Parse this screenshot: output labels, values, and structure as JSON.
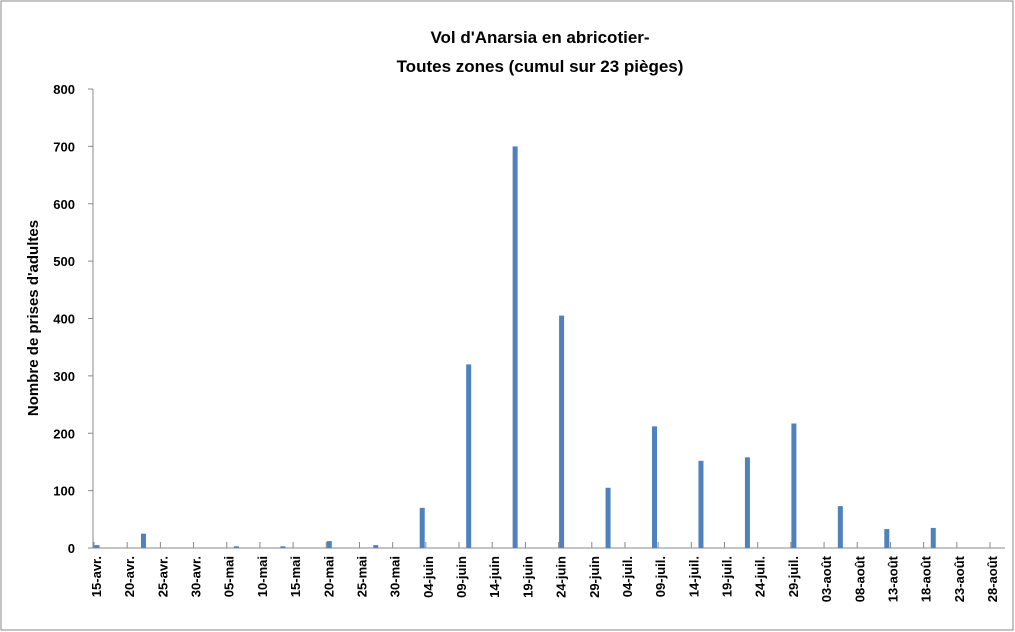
{
  "chart_data": {
    "type": "bar",
    "title": [
      "Vol d'Anarsia en abricotier-",
      "Toutes zones (cumul sur 23 pièges)"
    ],
    "y_label": "Nombre de prises d'adultes",
    "color": "#4f81bd",
    "categories": [
      "15-avr.",
      null,
      null,
      null,
      null,
      "20-avr.",
      null,
      null,
      null,
      null,
      "25-avr.",
      null,
      null,
      null,
      null,
      "30-avr.",
      null,
      null,
      null,
      null,
      "05-mai",
      null,
      null,
      null,
      null,
      "10-mai",
      null,
      null,
      null,
      null,
      "15-mai",
      null,
      null,
      null,
      null,
      "20-mai",
      null,
      null,
      null,
      null,
      "25-mai",
      null,
      null,
      null,
      null,
      "30-mai",
      null,
      null,
      null,
      null,
      "04-juin",
      null,
      null,
      null,
      null,
      "09-juin",
      null,
      null,
      null,
      null,
      "14-juin",
      null,
      null,
      null,
      null,
      "19-juin",
      null,
      null,
      null,
      null,
      "24-juin",
      null,
      null,
      null,
      null,
      "29-juin",
      null,
      null,
      null,
      null,
      "04-juil.",
      null,
      null,
      null,
      null,
      "09-juil.",
      null,
      null,
      null,
      null,
      "14-juil.",
      null,
      null,
      null,
      null,
      "19-juil.",
      null,
      null,
      null,
      null,
      "24-juil.",
      null,
      null,
      null,
      null,
      "29-juil.",
      null,
      null,
      null,
      null,
      "03-août",
      null,
      null,
      null,
      null,
      "08-août",
      null,
      null,
      null,
      null,
      "13-août",
      null,
      null,
      null,
      null,
      "18-août",
      null,
      null,
      null,
      null,
      "23-août",
      null,
      null,
      null,
      null,
      "28-août"
    ],
    "values": [
      5,
      null,
      null,
      null,
      null,
      null,
      null,
      25,
      null,
      null,
      null,
      null,
      null,
      null,
      null,
      null,
      null,
      null,
      null,
      null,
      null,
      3,
      null,
      null,
      null,
      null,
      null,
      null,
      3,
      null,
      null,
      null,
      null,
      null,
      null,
      12,
      null,
      null,
      null,
      null,
      null,
      null,
      5,
      null,
      null,
      null,
      null,
      null,
      null,
      70,
      null,
      null,
      null,
      null,
      null,
      null,
      320,
      null,
      null,
      null,
      null,
      null,
      null,
      700,
      null,
      null,
      null,
      null,
      null,
      null,
      405,
      null,
      null,
      null,
      null,
      null,
      null,
      105,
      null,
      null,
      null,
      null,
      null,
      null,
      212,
      null,
      null,
      null,
      null,
      null,
      null,
      152,
      null,
      null,
      null,
      null,
      null,
      null,
      158,
      null,
      null,
      null,
      null,
      null,
      null,
      217,
      null,
      null,
      null,
      null,
      null,
      null,
      73,
      null,
      null,
      null,
      null,
      null,
      null,
      33,
      null,
      null,
      null,
      null,
      null,
      null,
      35,
      null,
      null,
      null,
      null,
      null,
      null,
      null,
      null,
      null
    ],
    "ylim": [
      0,
      800
    ],
    "yticks": [
      0,
      100,
      200,
      300,
      400,
      500,
      600,
      700,
      800
    ]
  }
}
